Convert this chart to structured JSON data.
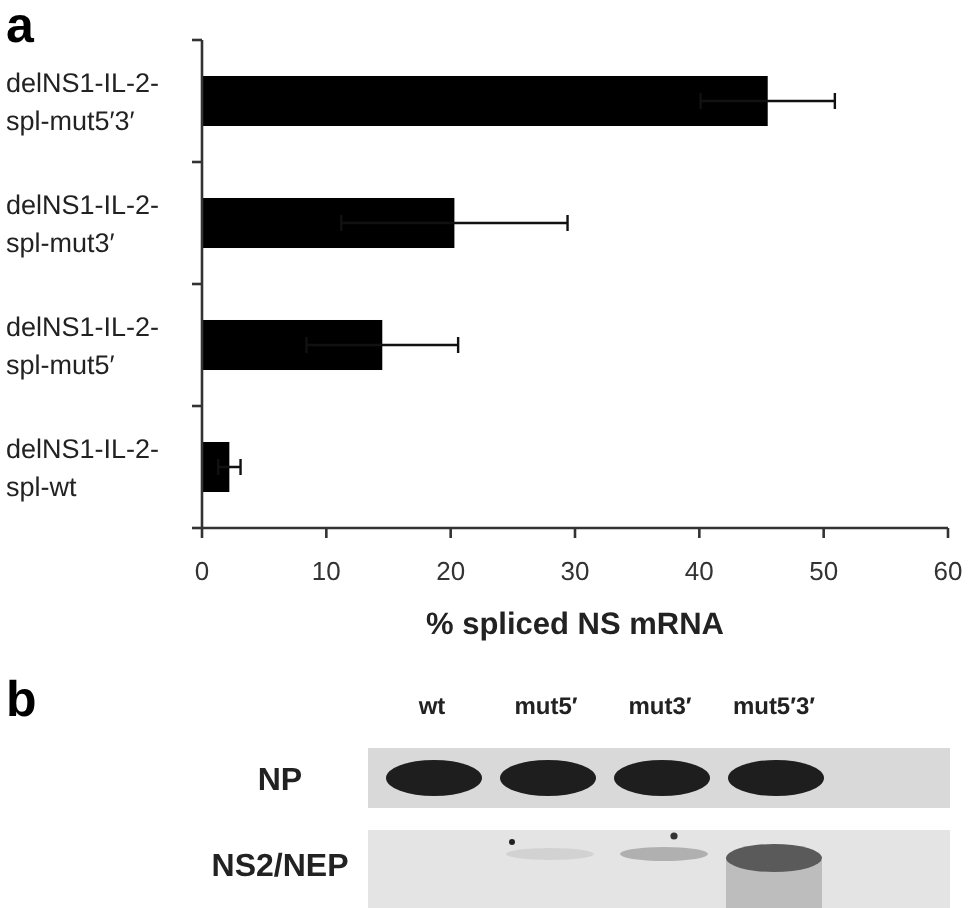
{
  "chart_data": [
    {
      "type": "bar",
      "title": "a",
      "orientation": "horizontal",
      "categories": [
        "delNS1-IL-2-spl-mut5′3′",
        "delNS1-IL-2-spl-mut3′",
        "delNS1-IL-2-spl-mut5′",
        "delNS1-IL-2-spl-wt"
      ],
      "values": [
        45.5,
        20.3,
        14.5,
        2.2
      ],
      "errors": [
        5.4,
        9.1,
        6.1,
        0.9
      ],
      "color": "#000000",
      "xlim": [
        0,
        60
      ],
      "xticks": [
        0,
        10,
        20,
        30,
        40,
        50,
        60
      ],
      "xlabel": "% spliced NS mRNA"
    },
    {
      "type": "other",
      "title": "b",
      "categories": [
        "wt",
        "mut5′",
        "mut3′",
        "mut5′3′"
      ],
      "y_categories": [
        "NP",
        "NS2/NEP"
      ]
    }
  ]
}
